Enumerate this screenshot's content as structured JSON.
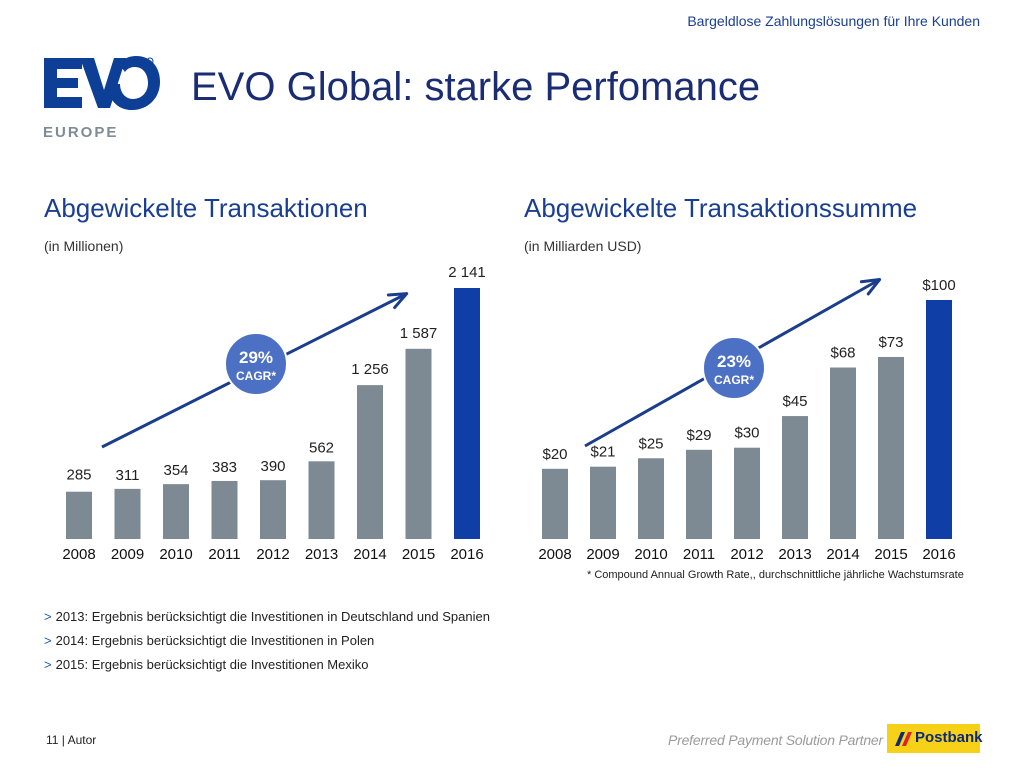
{
  "header": {
    "tagline": "Bargeldlose Zahlungslösungen für Ihre Kunden",
    "title": "EVO Global: starke Perfomance",
    "logo_subtitle": "EUROPE"
  },
  "colors": {
    "bar_gray": "#7d8a93",
    "bar_highlight": "#0f3fa6",
    "badge": "#4c70c3",
    "arrow": "#1a3d8c",
    "title": "#1a3f92"
  },
  "sections": {
    "left": {
      "title": "Abgewickelte Transaktionen",
      "unit": "(in Millionen)"
    },
    "right": {
      "title": "Abgewickelte Transaktionssumme",
      "unit": "(in Milliarden USD)"
    }
  },
  "chart_data": [
    {
      "type": "bar",
      "title": "Abgewickelte Transaktionen",
      "ylabel": "(in Millionen)",
      "categories": [
        "2008",
        "2009",
        "2010",
        "2011",
        "2012",
        "2013",
        "2014",
        "2015",
        "2016"
      ],
      "values": [
        285,
        311,
        354,
        383,
        390,
        562,
        1256,
        1587,
        2141
      ],
      "labels": [
        "285",
        "311",
        "354",
        "383",
        "390",
        "562",
        "1 256",
        "1 587",
        "2 141"
      ],
      "highlight_index": 8,
      "ylim": [
        0,
        2141
      ],
      "grid": false,
      "badge": {
        "value": "29%",
        "label": "CAGR*"
      }
    },
    {
      "type": "bar",
      "title": "Abgewickelte Transaktionssumme",
      "ylabel": "(in Milliarden USD)",
      "categories": [
        "2008",
        "2009",
        "2010",
        "2011",
        "2012",
        "2013",
        "2014",
        "2015",
        "2016"
      ],
      "values": [
        20,
        21,
        25,
        29,
        30,
        45,
        68,
        73,
        100
      ],
      "labels": [
        "$20",
        "$21",
        "$25",
        "$29",
        "$30",
        "$45",
        "$68",
        "$73",
        "$100"
      ],
      "highlight_index": 8,
      "ylim": [
        0,
        100
      ],
      "grid": false,
      "badge": {
        "value": "23%",
        "label": "CAGR*"
      }
    }
  ],
  "footnote": "* Compound Annual Growth Rate,, durchschnittliche jährliche Wachstumsrate",
  "notes_marker": ">",
  "notes": [
    "2013: Ergebnis berücksichtigt die Investitionen in Deutschland und Spanien",
    "2014: Ergebnis berücksichtigt die Investitionen in Polen",
    "2015: Ergebnis berücksichtigt die Investitionen Mexiko"
  ],
  "footer": {
    "page": "11 |  Autor",
    "partner": "Preferred Payment Solution Partner for",
    "postbank": "Postbank"
  }
}
